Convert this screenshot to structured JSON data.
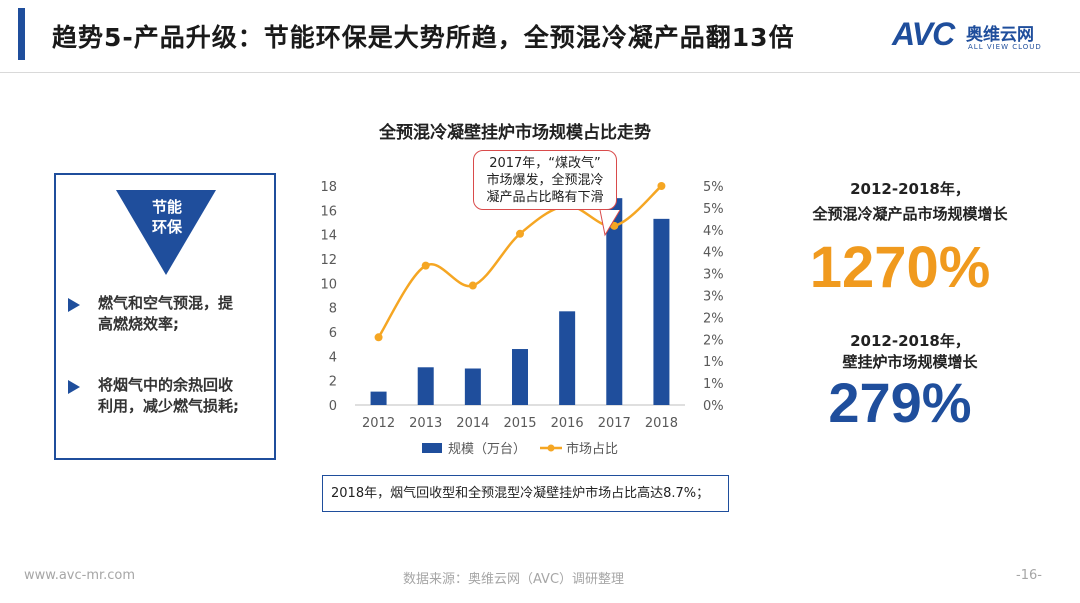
{
  "header": {
    "title": "趋势5-产品升级：节能环保是大势所趋，全预混冷凝产品翻13倍",
    "logo_text": "AVC",
    "logo_cn": "奥维云网",
    "logo_en": "ALL VIEW CLOUD",
    "accent_color": "#1f4e9c"
  },
  "left_panel": {
    "badge": [
      "节能",
      "环保"
    ],
    "bullets": [
      {
        "line1": "燃气和空气预混，提",
        "line2": "高燃烧效率;"
      },
      {
        "line1": "将烟气中的余热回收",
        "line2": "利用，减少燃气损耗;"
      }
    ],
    "icon": "triangle-arrow-icon"
  },
  "chart_data": {
    "type": "bar",
    "title": "全预混冷凝壁挂炉市场规模占比走势",
    "categories": [
      "2012",
      "2013",
      "2014",
      "2015",
      "2016",
      "2017",
      "2018"
    ],
    "series": [
      {
        "name": "规模（万台）",
        "type": "bar",
        "axis": "left",
        "color": "#1f4e9c",
        "values": [
          1.1,
          3.1,
          3.0,
          4.6,
          7.7,
          17.0,
          15.3
        ]
      },
      {
        "name": "市场占比",
        "type": "line",
        "axis": "right",
        "color": "#f5a623",
        "values": [
          1.7,
          3.5,
          3.0,
          4.3,
          5.0,
          4.5,
          5.5
        ]
      }
    ],
    "ylim": [
      0,
      18
    ],
    "y_ticks": [
      "0",
      "2",
      "4",
      "6",
      "8",
      "10",
      "12",
      "14",
      "16",
      "18"
    ],
    "y2lim": [
      0,
      5.5
    ],
    "y2_ticks": [
      "0%",
      "1%",
      "1%",
      "2%",
      "2%",
      "3%",
      "3%",
      "4%",
      "4%",
      "5%",
      "5%"
    ],
    "grid": false,
    "legend": "bottom",
    "annotation": {
      "lines": [
        "2017年，“煤改气”",
        "市场爆发，全预混冷",
        "凝产品占比略有下滑"
      ]
    }
  },
  "note": "2018年，烟气回收型和全预混型冷凝壁挂炉市场占比高达8.7%；",
  "stats": [
    {
      "label_line1": "2012-2018年，",
      "label_line2": "全预混冷凝产品市场规模增长",
      "value": "1270%",
      "color": "#f09a1e"
    },
    {
      "label_line1": "2012-2018年，",
      "label_line2": "壁挂炉市场规模增长",
      "value": "279%",
      "color": "#1f4e9c"
    }
  ],
  "footer": {
    "url": "www.avc-mr.com",
    "source": "数据来源：奥维云网（AVC）调研整理",
    "page": "-16-"
  }
}
